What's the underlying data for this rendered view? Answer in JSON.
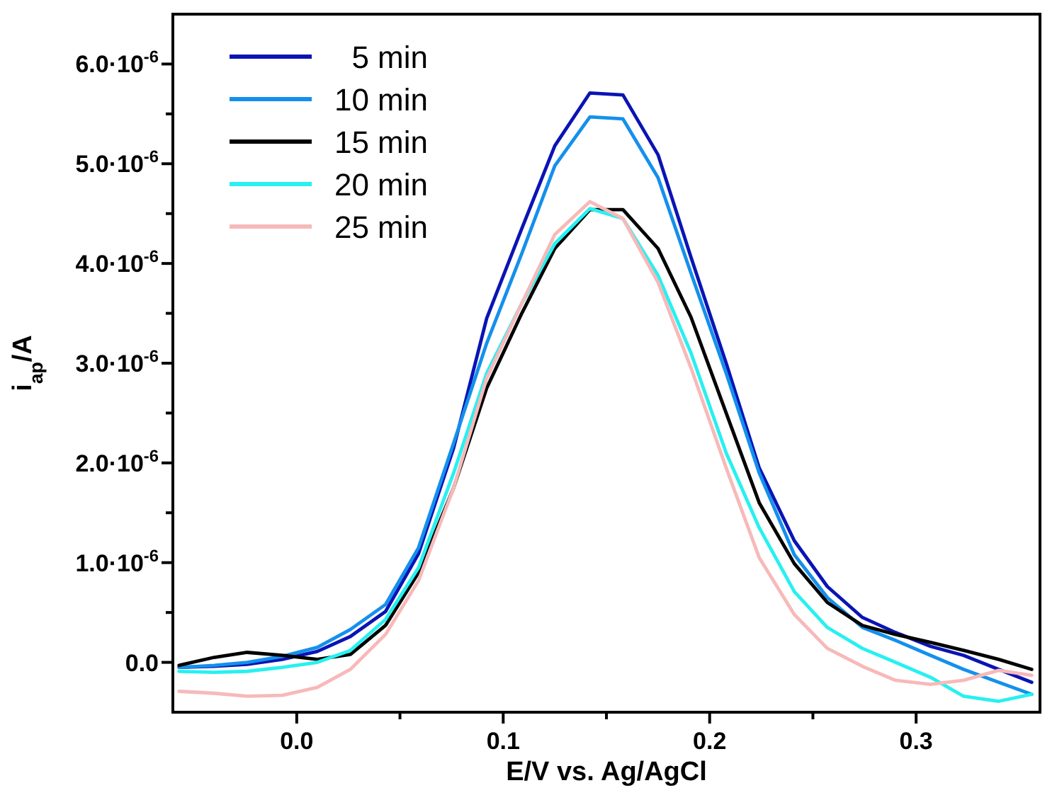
{
  "chart_data": {
    "type": "line",
    "xlabel": "E/V vs. Ag/AgCl",
    "ylabel": "i$_{ap}$/A",
    "x": [
      -0.057,
      -0.04,
      -0.024,
      -0.007,
      0.01,
      0.026,
      0.043,
      0.059,
      0.076,
      0.092,
      0.109,
      0.125,
      0.142,
      0.158,
      0.175,
      0.191,
      0.208,
      0.224,
      0.241,
      0.257,
      0.274,
      0.29,
      0.307,
      0.323,
      0.34,
      0.356
    ],
    "series": [
      {
        "name": "5 min",
        "color": "#0a14b4",
        "values": [
          -5e-08,
          -4e-08,
          -2e-08,
          3e-08,
          1.1e-07,
          2.6e-07,
          5.1e-07,
          1.09e-06,
          2.15e-06,
          3.45e-06,
          4.35e-06,
          5.18e-06,
          5.71e-06,
          5.69e-06,
          5.09e-06,
          4.06e-06,
          3e-06,
          1.95e-06,
          1.22e-06,
          7.6e-07,
          4.5e-07,
          3e-07,
          1.6e-07,
          7e-08,
          -7e-08,
          -2e-07
        ]
      },
      {
        "name": "10 min",
        "color": "#1490ec",
        "values": [
          -5e-08,
          -3e-08,
          0,
          6e-08,
          1.5e-07,
          3.3e-07,
          5.8e-07,
          1.15e-06,
          2.2e-06,
          3.2e-06,
          4.1e-06,
          4.98e-06,
          5.47e-06,
          5.45e-06,
          4.86e-06,
          3.9e-06,
          2.9e-06,
          1.9e-06,
          1.08e-06,
          6.5e-07,
          3.5e-07,
          2.2e-07,
          7e-08,
          -7e-08,
          -2e-07,
          -3.2e-07
        ]
      },
      {
        "name": "15 min",
        "color": "#000000",
        "values": [
          -3e-08,
          5e-08,
          1e-07,
          7e-08,
          3e-08,
          8e-08,
          3.7e-07,
          9e-07,
          1.75e-06,
          2.75e-06,
          3.5e-06,
          4.15e-06,
          4.54e-06,
          4.54e-06,
          4.15e-06,
          3.46e-06,
          2.5e-06,
          1.6e-06,
          9.9e-07,
          6e-07,
          3.7e-07,
          2.8e-07,
          2e-07,
          1.2e-07,
          3e-08,
          -7e-08
        ]
      },
      {
        "name": "20 min",
        "color": "#28f0f0",
        "values": [
          -9e-08,
          -1e-07,
          -9e-08,
          -5e-08,
          0,
          1.2e-07,
          4.3e-07,
          9.5e-07,
          1.9e-06,
          2.9e-06,
          3.6e-06,
          4.2e-06,
          4.55e-06,
          4.45e-06,
          3.88e-06,
          3.1e-06,
          2.1e-06,
          1.35e-06,
          7.1e-07,
          3.5e-07,
          1.4e-07,
          0,
          -1.5e-07,
          -3.4e-07,
          -3.9e-07,
          -3.2e-07
        ]
      },
      {
        "name": "25 min",
        "color": "#f7b9b9",
        "values": [
          -2.9e-07,
          -3.1e-07,
          -3.4e-07,
          -3.3e-07,
          -2.5e-07,
          -7e-08,
          2.8e-07,
          8.2e-07,
          1.75e-06,
          2.85e-06,
          3.6e-06,
          4.29e-06,
          4.62e-06,
          4.45e-06,
          3.81e-06,
          2.95e-06,
          1.95e-06,
          1.05e-06,
          4.8e-07,
          1.4e-07,
          -4e-08,
          -1.8e-07,
          -2.2e-07,
          -1.8e-07,
          -8e-08,
          -1.3e-07
        ]
      }
    ],
    "xlim": [
      -0.06,
      0.36
    ],
    "xticks": [
      {
        "value": 0.0,
        "label": "0.0"
      },
      {
        "value": 0.05,
        "label": null
      },
      {
        "value": 0.1,
        "label": "0.1"
      },
      {
        "value": 0.15,
        "label": null
      },
      {
        "value": 0.2,
        "label": "0.2"
      },
      {
        "value": 0.25,
        "label": null
      },
      {
        "value": 0.3,
        "label": "0.3"
      }
    ],
    "ylim": [
      -5e-07,
      6.5e-06
    ],
    "yticks": [
      {
        "value": 0,
        "label": "0.0"
      },
      {
        "value": 5e-07,
        "label": null
      },
      {
        "value": 1e-06,
        "label": "1.0·10$^{-6}$"
      },
      {
        "value": 1.5e-06,
        "label": null
      },
      {
        "value": 2e-06,
        "label": "2.0·10$^{-6}$"
      },
      {
        "value": 2.5e-06,
        "label": null
      },
      {
        "value": 3e-06,
        "label": "3.0·10$^{-6}$"
      },
      {
        "value": 3.5e-06,
        "label": null
      },
      {
        "value": 4e-06,
        "label": "4.0·10$^{-6}$"
      },
      {
        "value": 4.5e-06,
        "label": null
      },
      {
        "value": 5e-06,
        "label": "5.0·10$^{-6}$"
      },
      {
        "value": 5.5e-06,
        "label": null
      },
      {
        "value": 6e-06,
        "label": "6.0·10$^{-6}$"
      }
    ],
    "grid": false,
    "legend": "top left",
    "marker": "none",
    "line_style": "solid"
  }
}
